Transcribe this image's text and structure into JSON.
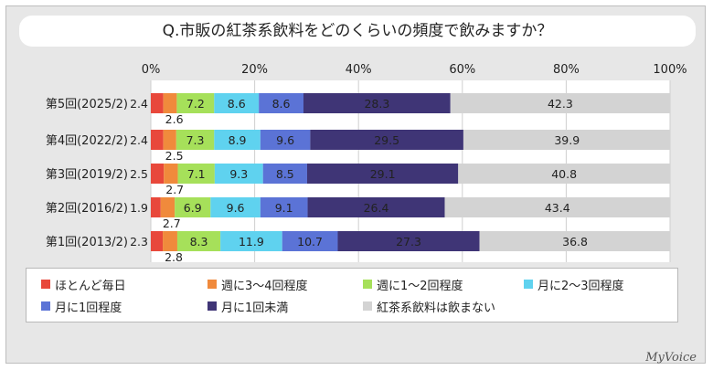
{
  "title": "Q.市販の紅茶系飲料をどのくらいの頻度で飲みますか？",
  "brand": "MyVoice",
  "colors": [
    "#e8483b",
    "#f08a3c",
    "#a6e05a",
    "#5fd2ef",
    "#5b73d6",
    "#3f3576",
    "#d3d3d3"
  ],
  "legend": [
    "ほとんど毎日",
    "週に3～4回程度",
    "週に1～2回程度",
    "月に2～3回程度",
    "月に1回程度",
    "月に1回未満",
    "紅茶系飲料は飲まない"
  ],
  "chart_data": {
    "type": "bar",
    "orientation": "horizontal",
    "stacked": true,
    "xlim": [
      0,
      100
    ],
    "ticks": [
      "0%",
      "20%",
      "40%",
      "60%",
      "80%",
      "100%"
    ],
    "categories": [
      "第5回(2025/2)",
      "第4回(2022/2)",
      "第3回(2019/2)",
      "第2回(2016/2)",
      "第1回(2013/2)"
    ],
    "series": [
      {
        "name": "ほとんど毎日",
        "values": [
          2.4,
          2.4,
          2.5,
          1.9,
          2.3
        ]
      },
      {
        "name": "週に3～4回程度",
        "values": [
          2.6,
          2.5,
          2.7,
          2.7,
          2.8
        ]
      },
      {
        "name": "週に1～2回程度",
        "values": [
          7.2,
          7.3,
          7.1,
          6.9,
          8.3
        ]
      },
      {
        "name": "月に2～3回程度",
        "values": [
          8.6,
          8.9,
          9.3,
          9.6,
          11.9
        ]
      },
      {
        "name": "月に1回程度",
        "values": [
          8.6,
          9.6,
          8.5,
          9.1,
          10.7
        ]
      },
      {
        "name": "月に1回未満",
        "values": [
          28.3,
          29.5,
          29.1,
          26.4,
          27.3
        ]
      },
      {
        "name": "紅茶系飲料は飲まない",
        "values": [
          42.3,
          39.9,
          40.8,
          43.4,
          36.8
        ]
      }
    ]
  }
}
